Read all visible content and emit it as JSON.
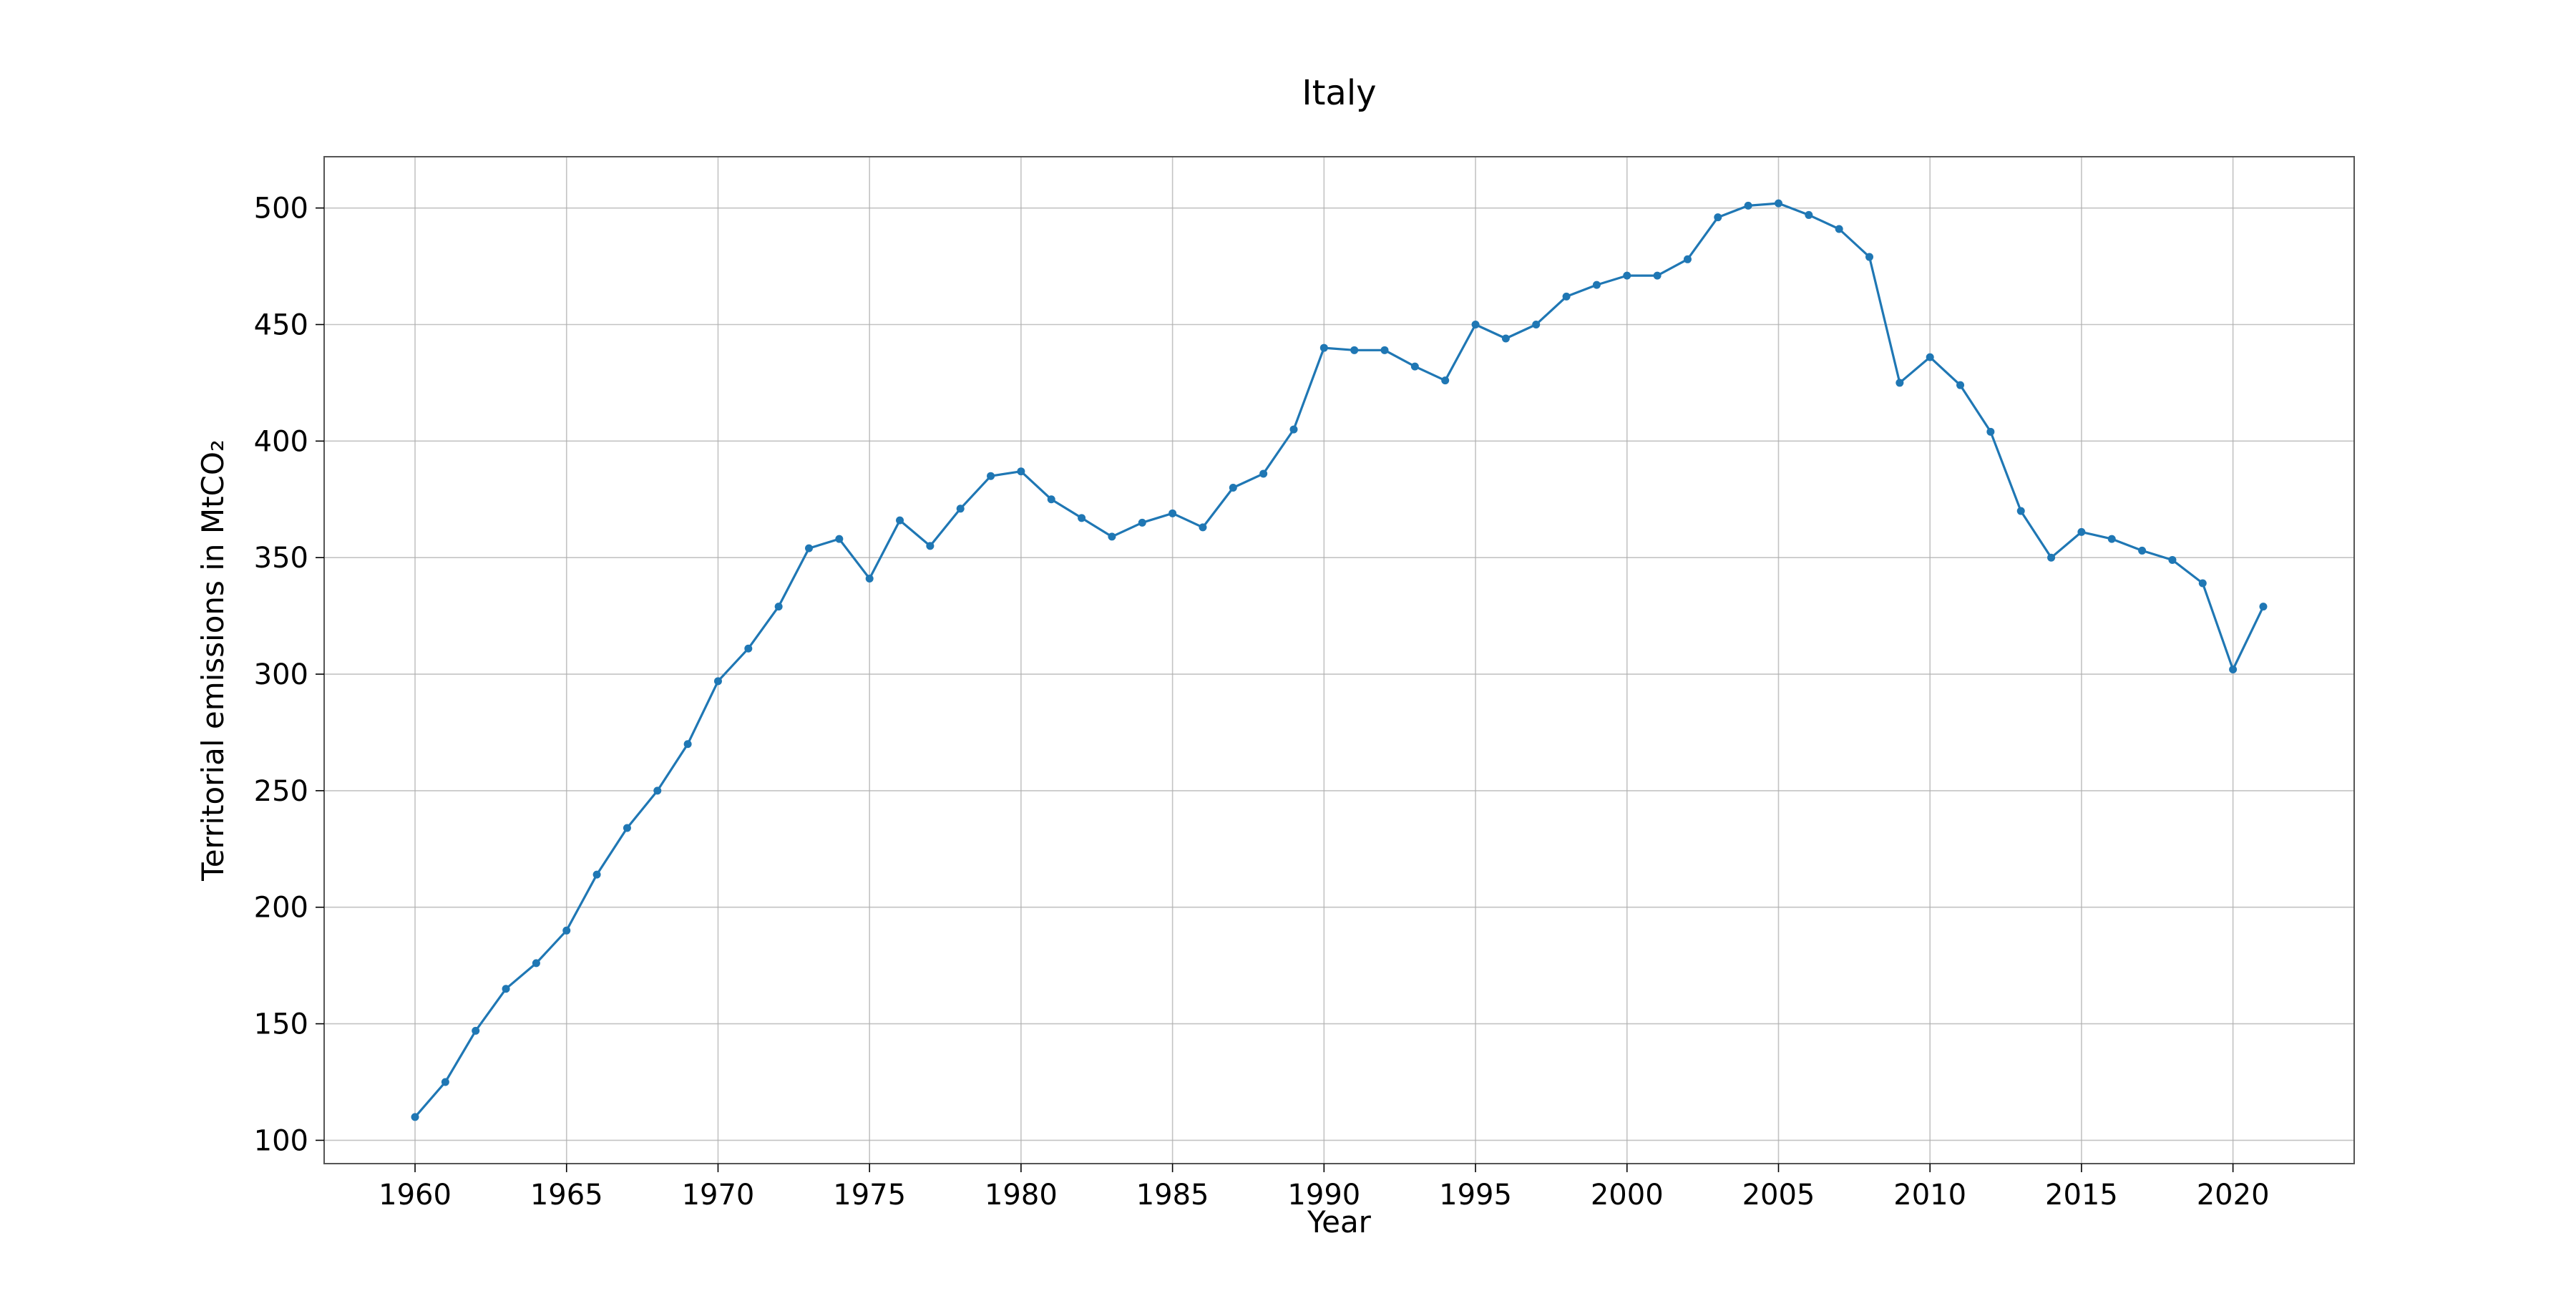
{
  "chart_data": {
    "type": "line",
    "title": "Italy",
    "xlabel": "Year",
    "ylabel": "Territorial emissions in MtCO₂",
    "xlim": [
      1957,
      2024
    ],
    "ylim": [
      90,
      522
    ],
    "grid": true,
    "x_ticks": [
      1960,
      1965,
      1970,
      1975,
      1980,
      1985,
      1990,
      1995,
      2000,
      2005,
      2010,
      2015,
      2020
    ],
    "y_ticks": [
      100,
      150,
      200,
      250,
      300,
      350,
      400,
      450,
      500
    ],
    "series": [
      {
        "color": "#1f77b4",
        "marker": "circle",
        "x": [
          1960,
          1961,
          1962,
          1963,
          1964,
          1965,
          1966,
          1967,
          1968,
          1969,
          1970,
          1971,
          1972,
          1973,
          1974,
          1975,
          1976,
          1977,
          1978,
          1979,
          1980,
          1981,
          1982,
          1983,
          1984,
          1985,
          1986,
          1987,
          1988,
          1989,
          1990,
          1991,
          1992,
          1993,
          1994,
          1995,
          1996,
          1997,
          1998,
          1999,
          2000,
          2001,
          2002,
          2003,
          2004,
          2005,
          2006,
          2007,
          2008,
          2009,
          2010,
          2011,
          2012,
          2013,
          2014,
          2015,
          2016,
          2017,
          2018,
          2019,
          2020,
          2021
        ],
        "y": [
          110,
          125,
          147,
          165,
          176,
          190,
          214,
          234,
          250,
          270,
          297,
          311,
          329,
          354,
          358,
          341,
          366,
          355,
          371,
          385,
          387,
          375,
          367,
          359,
          365,
          369,
          363,
          380,
          386,
          405,
          440,
          439,
          439,
          432,
          426,
          450,
          444,
          450,
          462,
          467,
          471,
          471,
          478,
          496,
          501,
          502,
          497,
          491,
          479,
          425,
          436,
          424,
          404,
          370,
          350,
          361,
          358,
          353,
          349,
          339,
          302,
          329
        ]
      }
    ]
  }
}
